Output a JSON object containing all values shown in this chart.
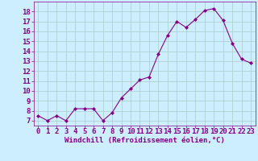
{
  "x": [
    0,
    1,
    2,
    3,
    4,
    5,
    6,
    7,
    8,
    9,
    10,
    11,
    12,
    13,
    14,
    15,
    16,
    17,
    18,
    19,
    20,
    21,
    22,
    23
  ],
  "y": [
    7.5,
    7.0,
    7.5,
    7.0,
    8.2,
    8.2,
    8.2,
    7.0,
    7.8,
    9.3,
    10.2,
    11.1,
    11.4,
    13.7,
    15.6,
    17.0,
    16.4,
    17.2,
    18.1,
    18.3,
    17.1,
    14.8,
    13.2,
    12.8
  ],
  "line_color": "#880088",
  "marker_color": "#880088",
  "bg_color": "#cceeff",
  "grid_color": "#aacccc",
  "xlabel": "Windchill (Refroidissement éolien,°C)",
  "xlabel_color": "#880088",
  "tick_color": "#880088",
  "spine_color": "#880088",
  "xlim": [
    -0.5,
    23.5
  ],
  "ylim": [
    6.5,
    19.0
  ],
  "yticks": [
    7,
    8,
    9,
    10,
    11,
    12,
    13,
    14,
    15,
    16,
    17,
    18
  ],
  "xticks": [
    0,
    1,
    2,
    3,
    4,
    5,
    6,
    7,
    8,
    9,
    10,
    11,
    12,
    13,
    14,
    15,
    16,
    17,
    18,
    19,
    20,
    21,
    22,
    23
  ],
  "tick_fontsize": 6.5,
  "xlabel_fontsize": 6.5
}
